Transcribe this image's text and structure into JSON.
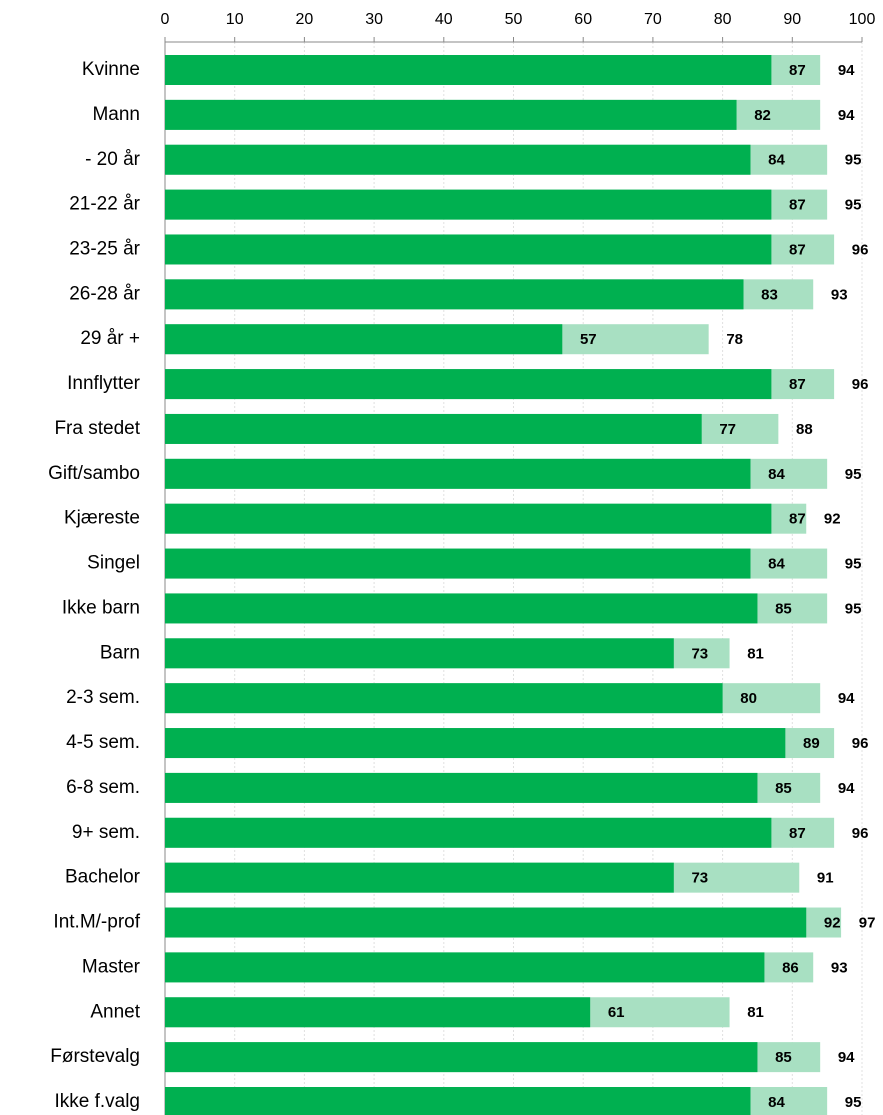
{
  "chart_data": {
    "type": "bar",
    "orientation": "horizontal",
    "overlap": true,
    "categories": [
      "Kvinne",
      "Mann",
      "- 20 år",
      "21-22 år",
      "23-25 år",
      "26-28 år",
      "29 år +",
      "Innflytter",
      "Fra stedet",
      "Gift/sambo",
      "Kjæreste",
      "Singel",
      "Ikke barn",
      "Barn",
      "2-3 sem.",
      "4-5 sem.",
      "6-8 sem.",
      "9+ sem.",
      "Bachelor",
      "Int.M/-prof",
      "Master",
      "Annet",
      "Førstevalg",
      "Ikke f.valg"
    ],
    "series": [
      {
        "color": "#a8e0c2",
        "values": [
          94,
          94,
          95,
          95,
          96,
          93,
          78,
          96,
          88,
          95,
          92,
          95,
          95,
          81,
          94,
          96,
          94,
          96,
          91,
          97,
          93,
          81,
          94,
          95
        ]
      },
      {
        "color": "#00b050",
        "values": [
          87,
          82,
          84,
          87,
          87,
          83,
          57,
          87,
          77,
          84,
          87,
          84,
          85,
          73,
          80,
          89,
          85,
          87,
          73,
          92,
          86,
          61,
          85,
          84
        ]
      }
    ],
    "xlim": [
      0,
      100
    ],
    "xticks": [
      0,
      10,
      20,
      30,
      40,
      50,
      60,
      70,
      80,
      90,
      100
    ],
    "grid": true,
    "data_labels": true
  }
}
